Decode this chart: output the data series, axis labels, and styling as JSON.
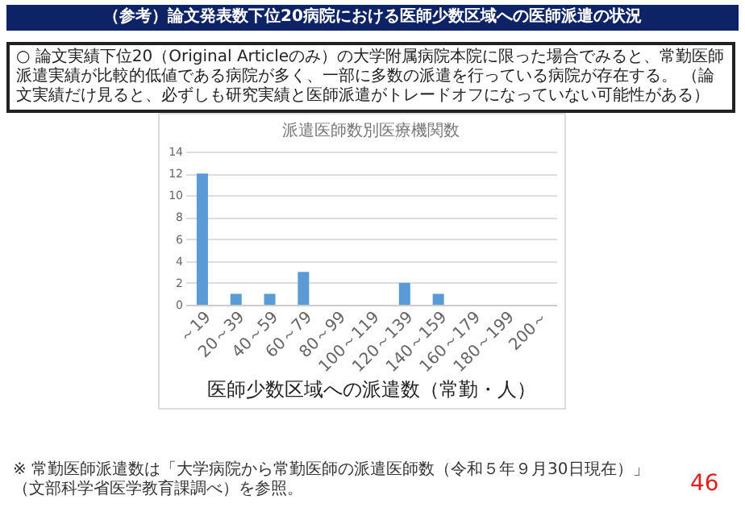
{
  "chart_data": {
    "type": "bar",
    "title": "（参考）論文発表数下位20病院における医師少数区域への医師派遣の状況",
    "subtitle": "派遣医師数別医療機関数",
    "annotations": [
      "○ 論文実績下位20（Original Articleのみ）の大学附属病院本院に限った場合でみると、常勤医師派遣実績が比較的低値である病院が多く、一部に多数の派遣を行っている病院が存在する。 （論文実績だけ見ると、必ずしも研究実績と医師派遣がトレードオフになっていない可能性がある）",
      "※ 常勤医師派遣数は「大学病院から常勤医師の派遣医師数（令和５年９月30日現在）」（文部科学省医学教育課調べ）を参照。",
      "46"
    ],
    "xlabel": "医師少数区域への派遣数（常勤・人）",
    "categories": [
      "～19",
      "20～39",
      "40～59",
      "60～79",
      "80～99",
      "100～119",
      "120～139",
      "140～159",
      "160～179",
      "180～199",
      "200～"
    ],
    "values": [
      12,
      1,
      1,
      3,
      0,
      0,
      2,
      1,
      0,
      0,
      0
    ],
    "color": "#5b9bd5",
    "ylim": [
      0,
      14
    ],
    "yticks": [
      0,
      2,
      4,
      6,
      8,
      10,
      12,
      14
    ],
    "grid": "y"
  }
}
